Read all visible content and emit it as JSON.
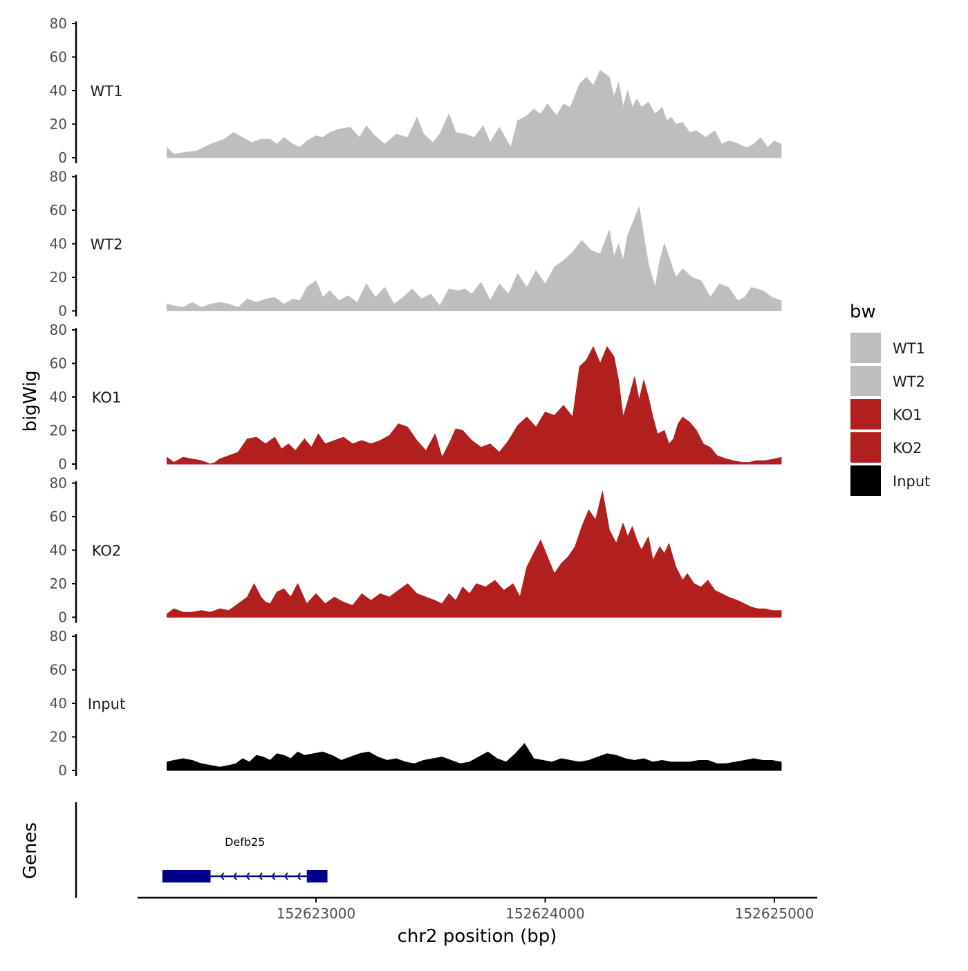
{
  "chart_data": {
    "type": "area",
    "xlabel": "chr2 position (bp)",
    "ylabel": "bigWig",
    "gene_panel_label": "Genes",
    "x_range": [
      152622350,
      152625030
    ],
    "x_ticks": [
      152623000,
      152624000,
      152625000
    ],
    "x_tick_labels": [
      "152623000",
      "152624000",
      "152625000"
    ],
    "ylim": [
      0,
      80
    ],
    "y_ticks": [
      0,
      20,
      40,
      60,
      80
    ],
    "y_tick_labels": [
      "0",
      "20",
      "40",
      "60",
      "80"
    ],
    "legend": {
      "title": "bw",
      "position": "right",
      "entries": [
        {
          "label": "WT1",
          "color": "#bebebe"
        },
        {
          "label": "WT2",
          "color": "#bebebe"
        },
        {
          "label": "KO1",
          "color": "#b21f1f"
        },
        {
          "label": "KO2",
          "color": "#b21f1f"
        },
        {
          "label": "Input",
          "color": "#000000"
        }
      ]
    },
    "series": [
      {
        "name": "WT1",
        "color": "#bebebe",
        "x": [
          152622350,
          152622380,
          152622420,
          152622480,
          152622540,
          152622600,
          152622640,
          152622680,
          152622720,
          152622760,
          152622800,
          152622830,
          152622860,
          152622900,
          152622930,
          152622960,
          152623000,
          152623030,
          152623060,
          152623100,
          152623150,
          152623190,
          152623220,
          152623250,
          152623300,
          152623350,
          152623400,
          152623440,
          152623470,
          152623510,
          152623540,
          152623580,
          152623610,
          152623650,
          152623690,
          152623730,
          152623760,
          152623800,
          152623850,
          152623880,
          152623920,
          152623950,
          152623980,
          152624010,
          152624050,
          152624080,
          152624110,
          152624150,
          152624180,
          152624210,
          152624240,
          152624280,
          152624300,
          152624320,
          152624340,
          152624360,
          152624380,
          152624400,
          152624420,
          152624450,
          152624480,
          152624510,
          152624530,
          152624550,
          152624570,
          152624600,
          152624630,
          152624660,
          152624700,
          152624740,
          152624770,
          152624800,
          152624830,
          152624860,
          152624880,
          152624910,
          152624940,
          152624970,
          152625000,
          152625030
        ],
        "y": [
          6,
          2,
          3,
          4,
          8,
          11,
          15,
          12,
          9,
          11,
          11,
          8,
          12,
          8,
          6,
          10,
          13,
          12,
          15,
          17,
          18,
          12,
          19,
          14,
          8,
          14,
          12,
          24,
          14,
          9,
          14,
          26,
          15,
          14,
          12,
          19,
          9,
          18,
          6,
          22,
          25,
          29,
          26,
          32,
          25,
          32,
          30,
          44,
          48,
          43,
          52,
          48,
          36,
          45,
          30,
          40,
          30,
          35,
          30,
          33,
          26,
          30,
          22,
          24,
          20,
          21,
          15,
          16,
          12,
          16,
          8,
          10,
          9,
          7,
          6,
          8,
          12,
          6,
          10,
          8
        ]
      },
      {
        "name": "WT2",
        "color": "#bebebe",
        "x": [
          152622350,
          152622380,
          152622420,
          152622460,
          152622500,
          152622540,
          152622580,
          152622620,
          152622660,
          152622700,
          152622740,
          152622780,
          152622820,
          152622860,
          152622900,
          152622930,
          152622960,
          152623000,
          152623030,
          152623060,
          152623100,
          152623140,
          152623180,
          152623220,
          152623260,
          152623300,
          152623340,
          152623380,
          152623420,
          152623460,
          152623500,
          152623540,
          152623580,
          152623620,
          152623650,
          152623680,
          152623720,
          152623760,
          152623800,
          152623840,
          152623880,
          152623920,
          152623960,
          152624000,
          152624040,
          152624080,
          152624120,
          152624160,
          152624200,
          152624240,
          152624280,
          152624300,
          152624320,
          152624340,
          152624360,
          152624390,
          152624410,
          152624430,
          152624450,
          152624480,
          152624500,
          152624520,
          152624550,
          152624570,
          152624600,
          152624640,
          152624680,
          152624720,
          152624760,
          152624800,
          152624840,
          152624870,
          152624900,
          152624950,
          152624990,
          152625030
        ],
        "y": [
          4,
          3,
          2,
          5,
          2,
          4,
          5,
          4,
          2,
          7,
          5,
          7,
          8,
          4,
          7,
          6,
          14,
          18,
          8,
          12,
          6,
          9,
          5,
          16,
          8,
          14,
          4,
          8,
          13,
          7,
          10,
          3,
          13,
          12,
          13,
          10,
          17,
          6,
          16,
          10,
          22,
          14,
          24,
          16,
          26,
          30,
          35,
          42,
          36,
          34,
          48,
          32,
          40,
          30,
          45,
          55,
          62,
          45,
          28,
          14,
          30,
          40,
          28,
          20,
          25,
          20,
          18,
          8,
          16,
          14,
          6,
          8,
          14,
          12,
          8,
          6
        ]
      },
      {
        "name": "KO1",
        "color": "#b21f1f",
        "x": [
          152622350,
          152622380,
          152622420,
          152622460,
          152622500,
          152622540,
          152622560,
          152622580,
          152622620,
          152622660,
          152622700,
          152622740,
          152622780,
          152622820,
          152622850,
          152622880,
          152622910,
          152622950,
          152622980,
          152623010,
          152623040,
          152623080,
          152623120,
          152623160,
          152623200,
          152623240,
          152623280,
          152623320,
          152623360,
          152623400,
          152623440,
          152623480,
          152623520,
          152623550,
          152623580,
          152623610,
          152623640,
          152623680,
          152623720,
          152623760,
          152623800,
          152623840,
          152623880,
          152623920,
          152623960,
          152624000,
          152624040,
          152624080,
          152624120,
          152624150,
          152624180,
          152624210,
          152624240,
          152624270,
          152624300,
          152624320,
          152624340,
          152624370,
          152624390,
          152624410,
          152624430,
          152624450,
          152624470,
          152624490,
          152624520,
          152624540,
          152624560,
          152624580,
          152624600,
          152624630,
          152624660,
          152624690,
          152624720,
          152624750,
          152624790,
          152624820,
          152624860,
          152624890,
          152624920,
          152624960,
          152625000,
          152625030
        ],
        "y": [
          4,
          1,
          4,
          3,
          2,
          0,
          1,
          3,
          5,
          7,
          15,
          16,
          12,
          16,
          9,
          12,
          8,
          15,
          10,
          18,
          12,
          14,
          16,
          12,
          14,
          12,
          14,
          17,
          24,
          22,
          14,
          8,
          18,
          4,
          12,
          21,
          20,
          14,
          10,
          12,
          7,
          14,
          23,
          28,
          22,
          31,
          29,
          35,
          28,
          58,
          62,
          70,
          60,
          70,
          64,
          50,
          28,
          42,
          52,
          38,
          50,
          40,
          28,
          18,
          20,
          12,
          15,
          24,
          28,
          25,
          20,
          12,
          10,
          5,
          3,
          2,
          1,
          1,
          2,
          2,
          3,
          4
        ]
      },
      {
        "name": "KO2",
        "color": "#b21f1f",
        "x": [
          152622350,
          152622380,
          152622420,
          152622460,
          152622500,
          152622540,
          152622580,
          152622620,
          152622660,
          152622700,
          152622730,
          152622760,
          152622780,
          152622800,
          152622830,
          152622860,
          152622890,
          152622920,
          152622960,
          152623000,
          152623040,
          152623080,
          152623120,
          152623160,
          152623200,
          152623240,
          152623280,
          152623320,
          152623360,
          152623400,
          152623440,
          152623480,
          152623520,
          152623550,
          152623580,
          152623610,
          152623640,
          152623670,
          152623700,
          152623740,
          152623780,
          152623820,
          152623860,
          152623890,
          152623920,
          152623950,
          152623980,
          152624010,
          152624040,
          152624070,
          152624100,
          152624130,
          152624160,
          152624190,
          152624220,
          152624250,
          152624280,
          152624310,
          152624340,
          152624360,
          152624380,
          152624400,
          152624420,
          152624450,
          152624470,
          152624500,
          152624520,
          152624540,
          152624570,
          152624600,
          152624620,
          152624650,
          152624680,
          152624710,
          152624740,
          152624770,
          152624800,
          152624840,
          152624870,
          152624900,
          152624930,
          152624960,
          152624990,
          152625030
        ],
        "y": [
          2,
          5,
          3,
          3,
          4,
          3,
          5,
          4,
          8,
          12,
          20,
          12,
          9,
          8,
          15,
          17,
          12,
          20,
          8,
          14,
          8,
          12,
          9,
          7,
          14,
          10,
          14,
          12,
          16,
          20,
          14,
          12,
          10,
          8,
          14,
          10,
          18,
          14,
          20,
          18,
          22,
          16,
          20,
          12,
          30,
          38,
          46,
          36,
          26,
          32,
          36,
          42,
          54,
          64,
          58,
          75,
          52,
          44,
          56,
          48,
          54,
          46,
          40,
          48,
          34,
          42,
          38,
          44,
          30,
          22,
          26,
          20,
          18,
          22,
          16,
          14,
          12,
          10,
          8,
          6,
          5,
          5,
          4,
          4
        ]
      },
      {
        "name": "Input",
        "color": "#000000",
        "x": [
          152622350,
          152622380,
          152622420,
          152622460,
          152622500,
          152622540,
          152622580,
          152622620,
          152622650,
          152622680,
          152622710,
          152622740,
          152622770,
          152622800,
          152622830,
          152622860,
          152622890,
          152622920,
          152622950,
          152622990,
          152623030,
          152623070,
          152623110,
          152623150,
          152623190,
          152623230,
          152623270,
          152623310,
          152623350,
          152623390,
          152623430,
          152623470,
          152623510,
          152623550,
          152623590,
          152623630,
          152623670,
          152623710,
          152623750,
          152623790,
          152623830,
          152623870,
          152623910,
          152623950,
          152623990,
          152624030,
          152624070,
          152624110,
          152624150,
          152624190,
          152624230,
          152624270,
          152624310,
          152624350,
          152624390,
          152624430,
          152624470,
          152624510,
          152624550,
          152624590,
          152624630,
          152624670,
          152624710,
          152624750,
          152624790,
          152624830,
          152624870,
          152624910,
          152624950,
          152624990,
          152625030
        ],
        "y": [
          5,
          6,
          7,
          6,
          4,
          3,
          2,
          3,
          4,
          7,
          5,
          9,
          8,
          6,
          10,
          9,
          7,
          11,
          9,
          10,
          11,
          9,
          6,
          8,
          10,
          11,
          8,
          6,
          7,
          5,
          4,
          6,
          7,
          8,
          6,
          4,
          5,
          8,
          11,
          7,
          5,
          10,
          16,
          7,
          6,
          5,
          7,
          6,
          5,
          6,
          8,
          10,
          9,
          7,
          6,
          7,
          5,
          6,
          5,
          5,
          5,
          6,
          6,
          4,
          4,
          5,
          6,
          7,
          6,
          6,
          5
        ]
      }
    ],
    "genes": [
      {
        "name": "Defb25",
        "strand": "-",
        "start": 152622330,
        "end": 152623050,
        "exons": [
          [
            152622330,
            152622540
          ],
          [
            152622960,
            152623050
          ]
        ]
      }
    ]
  }
}
